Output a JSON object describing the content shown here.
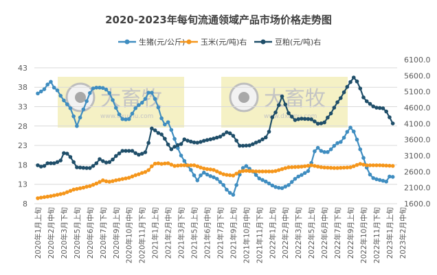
{
  "chart_data": {
    "type": "line",
    "title": "2020-2023年每旬流通领域产品市场价格走势图",
    "watermark": "大畜牧",
    "watermark_url": "www.dxumu.com",
    "legend_position": "top",
    "grid": true,
    "x_tick_labels": [
      "2020年1月上旬",
      "2020年2月中旬",
      "2020年3月下旬",
      "2020年5月上旬",
      "2020年6月中旬",
      "2020年7月下旬",
      "2020年9月上旬",
      "2020年10月中旬",
      "2020年11月下旬",
      "2021年1月上旬",
      "2021年2月中旬",
      "2021年3月下旬",
      "2021年5月上旬",
      "2021年6月中旬",
      "2021年7月下旬",
      "2021年9月上旬",
      "2021年10月中旬",
      "2021年11月下旬",
      "2022年1月上旬",
      "2022年2月中旬",
      "2022年3月下旬",
      "2022年5月上旬",
      "2022年6月中旬",
      "2022年7月下旬",
      "2022年9月上旬",
      "2022年10月中旬",
      "2022年11月下旬",
      "2023年1月上旬",
      "2023年2月中旬"
    ],
    "x_tick_every": 4,
    "y_left": {
      "ticks": [
        "8",
        "13",
        "18",
        "23",
        "28",
        "33",
        "38",
        "43"
      ],
      "ylim": [
        8,
        45.1
      ]
    },
    "y_right": {
      "ticks": [
        "1600.0",
        "2100.0",
        "2600.0",
        "3100.0",
        "3600.0",
        "4100.0",
        "4600.0",
        "5100.0",
        "5600.0",
        "6100.0"
      ],
      "ylim": [
        1600,
        6100
      ]
    },
    "series": [
      {
        "name": "生猪(元/公斤)",
        "axis": "left",
        "color": "#3f8dc0",
        "values": [
          36.4,
          36.9,
          37.5,
          38.7,
          39.4,
          37.9,
          37.2,
          35.8,
          34.6,
          33.6,
          32.6,
          30.5,
          28.0,
          30.2,
          32.3,
          34.4,
          36.5,
          37.7,
          37.9,
          37.9,
          37.8,
          37.4,
          36.5,
          34.7,
          32.7,
          31.0,
          29.8,
          29.7,
          29.8,
          31.2,
          32.6,
          33.4,
          34.0,
          35.0,
          36.6,
          36.6,
          35.0,
          32.8,
          30.0,
          28.4,
          29.0,
          27.0,
          24.7,
          22.3,
          20.4,
          19.0,
          17.8,
          16.7,
          15.3,
          14.0,
          15.3,
          16.0,
          15.5,
          15.1,
          14.8,
          14.4,
          13.6,
          12.8,
          11.6,
          10.8,
          10.3,
          12.8,
          15.5,
          17.2,
          17.7,
          17.0,
          16.3,
          15.4,
          14.5,
          14.1,
          13.7,
          13.2,
          12.7,
          12.3,
          12.1,
          12.0,
          12.4,
          12.8,
          13.6,
          14.4,
          15.0,
          15.4,
          15.9,
          16.4,
          18.5,
          21.5,
          22.4,
          21.6,
          21.3,
          21.3,
          22.0,
          22.9,
          23.6,
          23.9,
          25.0,
          26.5,
          27.6,
          26.6,
          24.5,
          22.0,
          19.8,
          17.3,
          15.5,
          14.6,
          14.3,
          14.1,
          13.9,
          13.7,
          15.0,
          14.9
        ]
      },
      {
        "name": "玉米(元/吨)右",
        "axis": "right",
        "color": "#f5961b",
        "values": [
          1771,
          1790,
          1805,
          1820,
          1836,
          1857,
          1878,
          1900,
          1921,
          1960,
          2000,
          2040,
          2060,
          2080,
          2100,
          2130,
          2150,
          2190,
          2230,
          2280,
          2329,
          2300,
          2286,
          2305,
          2330,
          2350,
          2370,
          2390,
          2410,
          2450,
          2490,
          2520,
          2560,
          2590,
          2650,
          2770,
          2850,
          2860,
          2843,
          2855,
          2864,
          2820,
          2779,
          2790,
          2800,
          2800,
          2800,
          2800,
          2800,
          2770,
          2730,
          2700,
          2680,
          2670,
          2655,
          2610,
          2560,
          2520,
          2500,
          2490,
          2479,
          2540,
          2600,
          2620,
          2629,
          2620,
          2615,
          2610,
          2607,
          2607,
          2607,
          2607,
          2607,
          2620,
          2650,
          2680,
          2710,
          2736,
          2740,
          2745,
          2750,
          2757,
          2770,
          2785,
          2800,
          2780,
          2760,
          2740,
          2730,
          2725,
          2720,
          2715,
          2715,
          2720,
          2725,
          2730,
          2736,
          2770,
          2810,
          2843,
          2820,
          2800,
          2800,
          2800,
          2800,
          2800,
          2795,
          2790,
          2785,
          2779
        ]
      },
      {
        "name": "豆粕(元/吨)右",
        "axis": "right",
        "color": "#1f4e69",
        "values": [
          2800,
          2760,
          2780,
          2864,
          2864,
          2864,
          2900,
          2950,
          3180,
          3164,
          3060,
          2900,
          2736,
          2730,
          2720,
          2714,
          2714,
          2780,
          2864,
          2993,
          2930,
          2886,
          2900,
          2980,
          3090,
          3170,
          3250,
          3250,
          3250,
          3250,
          3180,
          3130,
          3160,
          3207,
          3500,
          3950,
          3893,
          3810,
          3764,
          3630,
          3450,
          3300,
          3380,
          3430,
          3464,
          3610,
          3570,
          3540,
          3515,
          3507,
          3530,
          3565,
          3590,
          3610,
          3636,
          3665,
          3695,
          3760,
          3830,
          3800,
          3721,
          3570,
          3410,
          3410,
          3415,
          3421,
          3460,
          3510,
          3550,
          3610,
          3670,
          3850,
          4300,
          4450,
          4680,
          4950,
          4700,
          4429,
          4320,
          4214,
          4240,
          4257,
          4250,
          4245,
          4236,
          4170,
          4100,
          4110,
          4140,
          4290,
          4420,
          4600,
          4770,
          4900,
          5080,
          5250,
          5400,
          5543,
          5420,
          5200,
          4920,
          4800,
          4720,
          4640,
          4600,
          4590,
          4579,
          4480,
          4300,
          4107
        ]
      }
    ]
  }
}
